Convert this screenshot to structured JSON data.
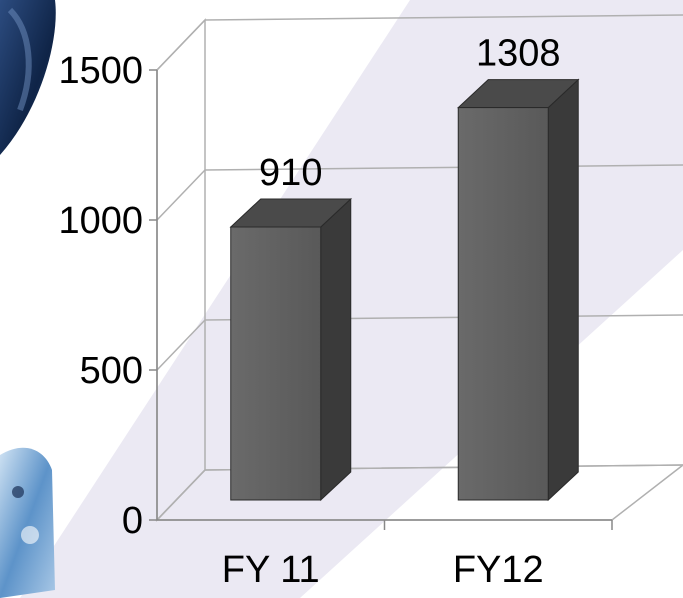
{
  "chart_data": {
    "type": "bar",
    "categories": [
      "FY 11",
      "FY12"
    ],
    "values": [
      910,
      1308
    ],
    "data_labels": [
      "910",
      "1308"
    ],
    "ylim": [
      0,
      1500
    ],
    "yticks": [
      {
        "value": 0,
        "label": "0"
      },
      {
        "value": 500,
        "label": "500"
      },
      {
        "value": 1000,
        "label": "1000"
      },
      {
        "value": 1500,
        "label": "1500"
      }
    ],
    "grid": true,
    "style": "3d",
    "colors": {
      "bar_front": "#5f5f5f",
      "bar_side": "#3a3a3a",
      "bar_top": "#4a4a4a",
      "grid": "#b0b0b0",
      "backdrop": "#e8e6f2"
    }
  }
}
